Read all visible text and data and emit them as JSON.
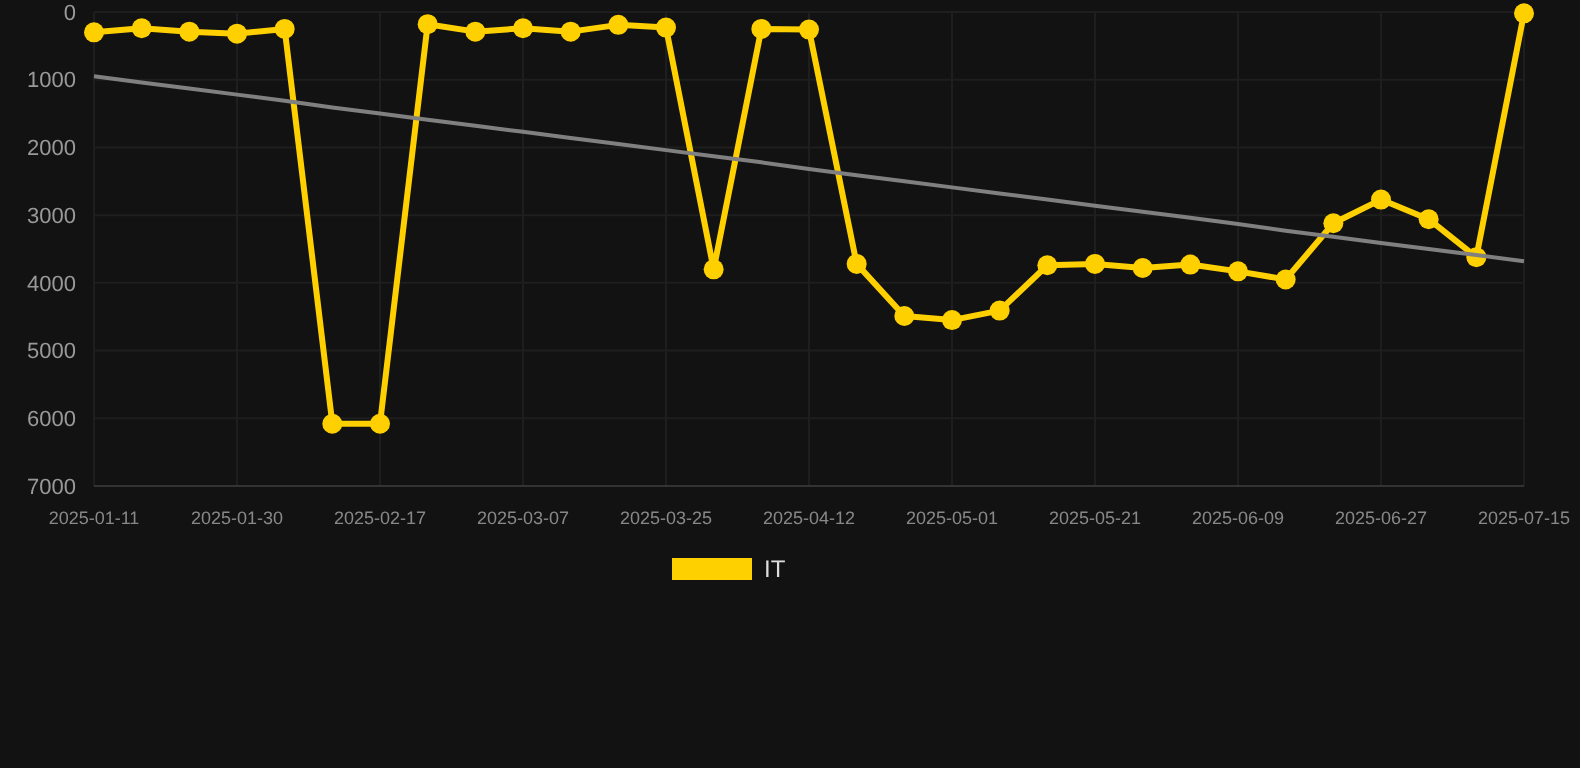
{
  "chart_data": {
    "type": "line",
    "categories": [
      "2025-01-11",
      null,
      null,
      "2025-01-30",
      null,
      null,
      "2025-02-17",
      null,
      null,
      "2025-03-07",
      null,
      null,
      "2025-03-25",
      null,
      null,
      "2025-04-12",
      null,
      null,
      "2025-05-01",
      null,
      null,
      "2025-05-21",
      null,
      null,
      "2025-06-09",
      null,
      null,
      "2025-06-27",
      null,
      null,
      "2025-07-15"
    ],
    "series": [
      {
        "name": "IT",
        "color": "#ffd000",
        "marker": "circle",
        "values": [
          300,
          240,
          290,
          320,
          250,
          6080,
          6080,
          180,
          290,
          240,
          290,
          190,
          230,
          3800,
          250,
          260,
          3720,
          4490,
          4550,
          4410,
          3740,
          3720,
          3780,
          3730,
          3830,
          3950,
          3120,
          2770,
          3060,
          3620,
          20
        ]
      },
      {
        "type": "line",
        "color": "#808080",
        "marker": "none",
        "values": [
          950,
          1040,
          1130,
          1220,
          1310,
          1410,
          1500,
          1590,
          1680,
          1770,
          1860,
          1950,
          2040,
          2130,
          2220,
          2320,
          2410,
          2500,
          2590,
          2680,
          2770,
          2860,
          2950,
          3040,
          3130,
          3230,
          3320,
          3410,
          3500,
          3590,
          3680
        ]
      }
    ],
    "ylim": [
      7000,
      0
    ],
    "yticks": [
      0,
      1000,
      2000,
      3000,
      4000,
      5000,
      6000,
      7000
    ],
    "grid": true,
    "legend": "bottom"
  }
}
